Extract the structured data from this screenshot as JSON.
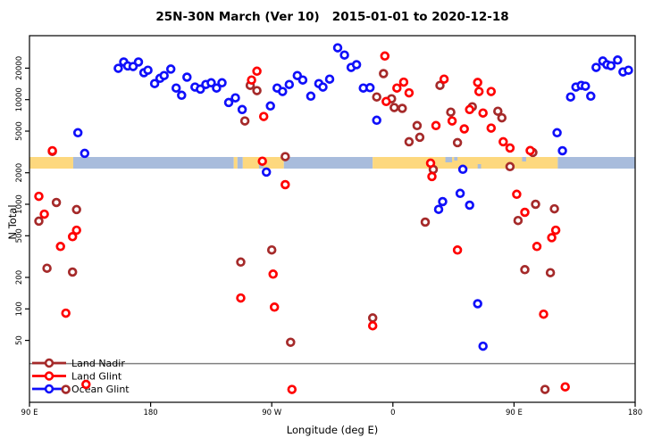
{
  "title": "25N-30N March (Ver 10)   2015-01-01 to 2020-12-18",
  "colors": {
    "land_band": "#FDD87E",
    "ocean_band": "#A8BCDC",
    "ref_line": "#808080",
    "axis": "#000000",
    "land_nadir": "#A52A2A",
    "land_glint": "#FF0000",
    "ocean_glint": "#0F0FFA"
  },
  "chart_data": {
    "type": "scatter",
    "title": "25N-30N March (Ver 10)   2015-01-01 to 2020-12-18",
    "xlabel": "Longitude (deg E)",
    "ylabel": "N Total",
    "y_scale": "log",
    "x_range_deg": [
      90,
      540
    ],
    "y_range": [
      13,
      41000
    ],
    "grid": false,
    "reference_line_y": 30,
    "x_ticks": [
      {
        "lon": 90,
        "label": "90 E"
      },
      {
        "lon": 180,
        "label": "180"
      },
      {
        "lon": 270,
        "label": "90 W"
      },
      {
        "lon": 360,
        "label": "0"
      },
      {
        "lon": 450,
        "label": "90 E"
      },
      {
        "lon": 540,
        "label": "180"
      }
    ],
    "y_ticks": [
      50,
      100,
      200,
      500,
      1000,
      2000,
      5000,
      10000,
      20000
    ],
    "coast_band": {
      "y_center_value": 2500,
      "segments": [
        {
          "from": 90,
          "to": 122.5,
          "surface": "land"
        },
        {
          "from": 122.5,
          "to": 241.8,
          "surface": "ocean"
        },
        {
          "from": 241.8,
          "to": 244.5,
          "surface": "land"
        },
        {
          "from": 244.5,
          "to": 248.5,
          "surface": "ocean"
        },
        {
          "from": 248.5,
          "to": 279,
          "surface": "land"
        },
        {
          "from": 279,
          "to": 345,
          "surface": "ocean"
        },
        {
          "from": 345,
          "to": 482.5,
          "surface": "land"
        },
        {
          "from": 482.5,
          "to": 540,
          "surface": "ocean"
        }
      ],
      "notches": [
        {
          "from": 399,
          "to": 404,
          "side": "top",
          "h": 6
        },
        {
          "from": 405.5,
          "to": 408,
          "side": "top",
          "h": 4
        },
        {
          "from": 456,
          "to": 459,
          "side": "top",
          "h": 5
        },
        {
          "from": 423,
          "to": 425.5,
          "side": "bottom",
          "h": 5
        },
        {
          "from": 260.5,
          "to": 264,
          "side": "bottom",
          "h": 6
        }
      ]
    },
    "legend": {
      "position": "bottom-left",
      "entries": [
        "Land Nadir",
        "Land Glint",
        "Ocean Glint"
      ]
    },
    "series": [
      {
        "name": "Land Nadir",
        "color_key": "land_nadir",
        "points": [
          [
            107,
            3200
          ],
          [
            110,
            1040
          ],
          [
            97,
            690
          ],
          [
            125,
            890
          ],
          [
            103,
            245
          ],
          [
            122,
            225
          ],
          [
            117,
            17
          ],
          [
            254,
            13700
          ],
          [
            259,
            12200
          ],
          [
            250,
            6250
          ],
          [
            280,
            2850
          ],
          [
            284,
            48
          ],
          [
            247,
            280
          ],
          [
            270,
            366
          ],
          [
            345,
            82
          ],
          [
            353,
            17750
          ],
          [
            348,
            10600
          ],
          [
            359,
            10200
          ],
          [
            361,
            8400
          ],
          [
            367,
            8250
          ],
          [
            378,
            5650
          ],
          [
            380,
            4370
          ],
          [
            372,
            3960
          ],
          [
            390,
            2150
          ],
          [
            384,
            675
          ],
          [
            395,
            13700
          ],
          [
            403,
            7600
          ],
          [
            419,
            8550
          ],
          [
            408,
            3880
          ],
          [
            438,
            7750
          ],
          [
            441,
            6700
          ],
          [
            447,
            2290
          ],
          [
            464,
            3130
          ],
          [
            466,
            1000
          ],
          [
            453,
            700
          ],
          [
            480,
            905
          ],
          [
            458,
            237
          ],
          [
            477,
            222
          ],
          [
            473,
            17
          ]
        ]
      },
      {
        "name": "Land Glint",
        "color_key": "land_glint",
        "points": [
          [
            107,
            3250
          ],
          [
            97,
            1190
          ],
          [
            101,
            805
          ],
          [
            125,
            565
          ],
          [
            122,
            490
          ],
          [
            113,
            395
          ],
          [
            117,
            91
          ],
          [
            132,
            19
          ],
          [
            247,
            127
          ],
          [
            272,
            104
          ],
          [
            285,
            17
          ],
          [
            263,
            2580
          ],
          [
            280,
            1540
          ],
          [
            271,
            215
          ],
          [
            255,
            15400
          ],
          [
            259,
            18700
          ],
          [
            264,
            6900
          ],
          [
            345,
            69
          ],
          [
            354,
            26100
          ],
          [
            355,
            9600
          ],
          [
            363,
            12900
          ],
          [
            368,
            14700
          ],
          [
            372,
            11600
          ],
          [
            388,
            2470
          ],
          [
            389,
            1840
          ],
          [
            392,
            5650
          ],
          [
            398,
            15700
          ],
          [
            417,
            8050
          ],
          [
            413,
            5250
          ],
          [
            404,
            6250
          ],
          [
            408,
            365
          ],
          [
            423,
            14600
          ],
          [
            424,
            11950
          ],
          [
            433,
            11950
          ],
          [
            427,
            7450
          ],
          [
            433,
            5350
          ],
          [
            442,
            3960
          ],
          [
            447,
            3450
          ],
          [
            462,
            3260
          ],
          [
            472,
            89
          ],
          [
            488,
            18
          ],
          [
            452,
            1245
          ],
          [
            458,
            838
          ],
          [
            481,
            565
          ],
          [
            478,
            480
          ],
          [
            467,
            395
          ]
        ]
      },
      {
        "name": "Ocean Glint",
        "color_key": "ocean_glint",
        "points": [
          [
            126,
            4830
          ],
          [
            131,
            3070
          ],
          [
            156,
            19900
          ],
          [
            160,
            22900
          ],
          [
            163,
            21000
          ],
          [
            167,
            20700
          ],
          [
            171,
            22900
          ],
          [
            175,
            18100
          ],
          [
            178,
            19100
          ],
          [
            183,
            14250
          ],
          [
            187,
            16000
          ],
          [
            190,
            17000
          ],
          [
            195,
            19600
          ],
          [
            199,
            12900
          ],
          [
            203,
            11000
          ],
          [
            207,
            16400
          ],
          [
            213,
            13200
          ],
          [
            217,
            12600
          ],
          [
            221,
            13950
          ],
          [
            225,
            14500
          ],
          [
            229,
            12900
          ],
          [
            233,
            14500
          ],
          [
            238,
            9400
          ],
          [
            243,
            10400
          ],
          [
            248,
            8050
          ],
          [
            266,
            2030
          ],
          [
            269,
            8700
          ],
          [
            274,
            12900
          ],
          [
            278,
            11950
          ],
          [
            283,
            13950
          ],
          [
            289,
            17000
          ],
          [
            293,
            15400
          ],
          [
            299,
            10800
          ],
          [
            305,
            14250
          ],
          [
            308,
            13200
          ],
          [
            313,
            15700
          ],
          [
            319,
            31300
          ],
          [
            324,
            26700
          ],
          [
            329,
            20300
          ],
          [
            333,
            21600
          ],
          [
            338,
            12900
          ],
          [
            343,
            13000
          ],
          [
            348,
            6350
          ],
          [
            394,
            895
          ],
          [
            397,
            1060
          ],
          [
            410,
            1270
          ],
          [
            412,
            2160
          ],
          [
            417,
            980
          ],
          [
            423,
            112
          ],
          [
            427,
            44
          ],
          [
            482,
            4830
          ],
          [
            486,
            3250
          ],
          [
            492,
            10600
          ],
          [
            496,
            13200
          ],
          [
            500,
            13700
          ],
          [
            503,
            13450
          ],
          [
            507,
            10800
          ],
          [
            511,
            20300
          ],
          [
            516,
            23400
          ],
          [
            519,
            21600
          ],
          [
            522,
            21100
          ],
          [
            527,
            23900
          ],
          [
            531,
            18400
          ],
          [
            535,
            19100
          ]
        ]
      }
    ]
  }
}
